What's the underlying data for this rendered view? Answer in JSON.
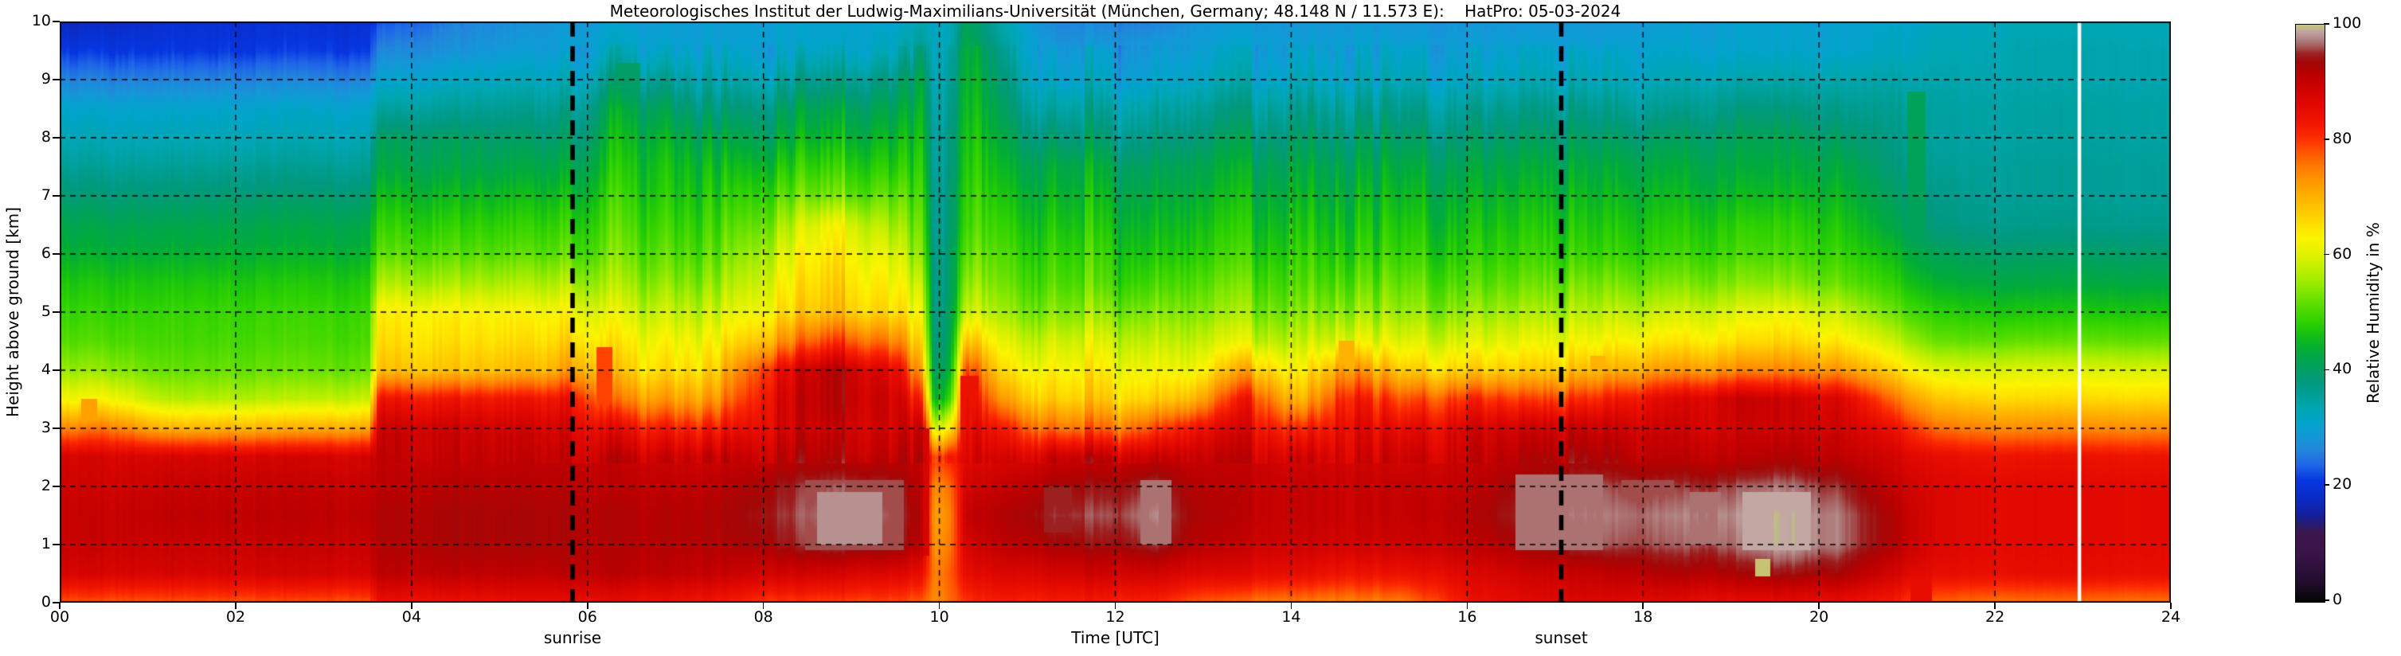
{
  "title": "Meteorologisches Institut der Ludwig-Maximilians-Universität (München, Germany; 48.148 N / 11.573 E):    HatPro: 05-03-2024",
  "axes": {
    "xlabel": "Time [UTC]",
    "ylabel": "Height above ground [km]",
    "x_tick_labels": [
      "00",
      "02",
      "04",
      "06",
      "08",
      "10",
      "12",
      "14",
      "16",
      "18",
      "20",
      "22",
      "24"
    ],
    "x_tick_values": [
      0,
      2,
      4,
      6,
      8,
      10,
      12,
      14,
      16,
      18,
      20,
      22,
      24
    ],
    "y_tick_labels": [
      "0",
      "1",
      "2",
      "3",
      "4",
      "5",
      "6",
      "7",
      "8",
      "9",
      "10"
    ],
    "y_tick_values": [
      0,
      1,
      2,
      3,
      4,
      5,
      6,
      7,
      8,
      9,
      10
    ]
  },
  "annotations": {
    "sunrise_label": "sunrise",
    "sunset_label": "sunset",
    "sunrise_time_utc": 5.83,
    "sunset_time_utc": 17.07,
    "data_gap_time_utc": 22.96
  },
  "colorbar": {
    "label": "Relative Humidity in %",
    "tick_values": [
      0,
      20,
      40,
      60,
      80,
      100
    ],
    "tick_labels": [
      "0",
      "20",
      "40",
      "60",
      "80",
      "100"
    ]
  },
  "chart_data": {
    "type": "heatmap",
    "title": "Relative humidity time-height section, HatPro microwave radiometer, 05-03-2024",
    "xlabel": "Time [UTC]",
    "ylabel": "Height above ground [km]",
    "value_label": "Relative Humidity in %",
    "x_range_hours": [
      0,
      24
    ],
    "y_range_km": [
      0,
      10
    ],
    "grid_x_step_hours": 2,
    "grid_y_step_km": 1,
    "heights_km": [
      0,
      0.5,
      1,
      1.5,
      2,
      2.5,
      3,
      3.5,
      4,
      4.5,
      5,
      5.5,
      6,
      6.5,
      7,
      7.5,
      8,
      8.5,
      9,
      9.5,
      10
    ],
    "times": [
      0,
      0.5,
      1.2,
      2.4,
      3.5,
      3.62,
      4.6,
      5.5,
      5.85,
      6.3,
      6.8,
      7.4,
      8.1,
      8.8,
      9.5,
      9.78,
      9.95,
      10.12,
      10.3,
      10.7,
      11.3,
      12.0,
      12.45,
      12.9,
      13.5,
      14.1,
      14.65,
      15.3,
      16.05,
      16.8,
      17.4,
      18.1,
      19.1,
      19.6,
      20.3,
      20.85,
      21.35,
      22.2,
      23.0,
      24.0
    ],
    "rh_profiles": [
      [
        78,
        88,
        90,
        90,
        89,
        88,
        74,
        62,
        55,
        51,
        49,
        47,
        44,
        42,
        39,
        36,
        33,
        31,
        26,
        21,
        17
      ],
      [
        78,
        88,
        90,
        90,
        89,
        88,
        76,
        63,
        55,
        51,
        49,
        47,
        44,
        42,
        39,
        36,
        33,
        31,
        26,
        21,
        18
      ],
      [
        78,
        88,
        90,
        91,
        90,
        88,
        70,
        57,
        52,
        50,
        49,
        47,
        44,
        42,
        39,
        36,
        33,
        31,
        26,
        21,
        19
      ],
      [
        78,
        88,
        90,
        91,
        90,
        88,
        70,
        57,
        52,
        50,
        49,
        47,
        44,
        42,
        39,
        36,
        33,
        31,
        26,
        21,
        19
      ],
      [
        78,
        88,
        90,
        91,
        90,
        88,
        71,
        58,
        52,
        50,
        49,
        47,
        44,
        42,
        39,
        36,
        33,
        31,
        26,
        21,
        19
      ],
      [
        84,
        91,
        92,
        92,
        91,
        90,
        89,
        83,
        68,
        65,
        63,
        56,
        51,
        48,
        45,
        42,
        40,
        35,
        30,
        26,
        22
      ],
      [
        84,
        91,
        93,
        93,
        92,
        90,
        89,
        83,
        68,
        65,
        63,
        56,
        51,
        48,
        45,
        42,
        40,
        36,
        32,
        28,
        26
      ],
      [
        85,
        91,
        93,
        93,
        92,
        91,
        89,
        84,
        70,
        66,
        63,
        57,
        52,
        49,
        46,
        43,
        40,
        37,
        33,
        30,
        28
      ],
      [
        85,
        92,
        93,
        93,
        92,
        91,
        89,
        85,
        74,
        68,
        64,
        58,
        53,
        50,
        47,
        44,
        41,
        38,
        34,
        31,
        29
      ],
      [
        85,
        91,
        92,
        92,
        91,
        90,
        84,
        74,
        67,
        63,
        59,
        55,
        52,
        50,
        48,
        46,
        44,
        42,
        37,
        32,
        30
      ],
      [
        84,
        91,
        92,
        92,
        91,
        89,
        82,
        72,
        65,
        62,
        58,
        54,
        51,
        49,
        47,
        46,
        44,
        41,
        36,
        31,
        29
      ],
      [
        83,
        90,
        92,
        92,
        91,
        89,
        81,
        71,
        65,
        61,
        57,
        53,
        50,
        48,
        46,
        44,
        41,
        37,
        33,
        30,
        29
      ],
      [
        80,
        89,
        94,
        95,
        94,
        91,
        88,
        87,
        84,
        72,
        65,
        62,
        59,
        55,
        51,
        47,
        43,
        40,
        35,
        31,
        30
      ],
      [
        79,
        88,
        96,
        97,
        96,
        91,
        89,
        91,
        91,
        79,
        68,
        66,
        64,
        61,
        52,
        48,
        44,
        41,
        36,
        31,
        30
      ],
      [
        79,
        87,
        95,
        96,
        95,
        91,
        89,
        89,
        86,
        75,
        66,
        63,
        60,
        56,
        52,
        48,
        45,
        42,
        38,
        33,
        31
      ],
      [
        77,
        85,
        91,
        92,
        91,
        90,
        88,
        80,
        70,
        64,
        60,
        56,
        52,
        50,
        48,
        46,
        44,
        42,
        40,
        36,
        33
      ],
      [
        74,
        75,
        73,
        72,
        74,
        80,
        60,
        45,
        41,
        39,
        38,
        38,
        38,
        37,
        37,
        36,
        36,
        35,
        34,
        33,
        32
      ],
      [
        76,
        77,
        75,
        74,
        76,
        81,
        62,
        47,
        42,
        40,
        39,
        38,
        38,
        37,
        37,
        36,
        36,
        35,
        34,
        33,
        32
      ],
      [
        80,
        85,
        88,
        90,
        88,
        86,
        85,
        84,
        79,
        68,
        58,
        54,
        51,
        49,
        48,
        47,
        46,
        45,
        44,
        43,
        41
      ],
      [
        82,
        87,
        91,
        92,
        90,
        87,
        82,
        72,
        65,
        60,
        55,
        52,
        50,
        48,
        46,
        44,
        42,
        40,
        38,
        36,
        34
      ],
      [
        82,
        88,
        93,
        95,
        93,
        89,
        75,
        66,
        62,
        58,
        53,
        50,
        48,
        46,
        44,
        42,
        38,
        34,
        30,
        28,
        26
      ],
      [
        82,
        89,
        94,
        96,
        94,
        90,
        76,
        67,
        63,
        59,
        54,
        50,
        48,
        46,
        44,
        42,
        38,
        35,
        31,
        29,
        26
      ],
      [
        82,
        89,
        96,
        98,
        96,
        91,
        80,
        68,
        63,
        59,
        55,
        51,
        48,
        46,
        44,
        42,
        39,
        36,
        32,
        30,
        26
      ],
      [
        78,
        87,
        92,
        93,
        92,
        90,
        84,
        70,
        62,
        58,
        54,
        51,
        48,
        46,
        44,
        42,
        39,
        36,
        32,
        30,
        28
      ],
      [
        76,
        86,
        90,
        91,
        91,
        90,
        87,
        83,
        71,
        60,
        55,
        52,
        49,
        47,
        45,
        43,
        40,
        37,
        33,
        31,
        29
      ],
      [
        75,
        85,
        89,
        90,
        90,
        88,
        80,
        68,
        62,
        57,
        53,
        50,
        48,
        46,
        44,
        42,
        39,
        36,
        32,
        30,
        28
      ],
      [
        75,
        84,
        89,
        90,
        90,
        89,
        87,
        84,
        75,
        62,
        56,
        52,
        49,
        47,
        45,
        43,
        40,
        37,
        33,
        31,
        29
      ],
      [
        75,
        84,
        89,
        90,
        90,
        88,
        84,
        77,
        66,
        59,
        54,
        51,
        48,
        46,
        44,
        42,
        39,
        36,
        32,
        30,
        28
      ],
      [
        84,
        87,
        91,
        92,
        91,
        90,
        88,
        81,
        67,
        60,
        55,
        51,
        48,
        46,
        44,
        42,
        39,
        36,
        32,
        30,
        28
      ],
      [
        86,
        89,
        94,
        96,
        95,
        91,
        88,
        78,
        66,
        60,
        55,
        51,
        48,
        46,
        44,
        42,
        39,
        36,
        32,
        30,
        28
      ],
      [
        87,
        90,
        96,
        97,
        96,
        92,
        89,
        80,
        68,
        61,
        56,
        52,
        48,
        46,
        44,
        42,
        39,
        36,
        32,
        30,
        28
      ],
      [
        86,
        92,
        96,
        97,
        95,
        91,
        89,
        85,
        72,
        64,
        58,
        53,
        49,
        47,
        45,
        43,
        40,
        36,
        33,
        31,
        29
      ],
      [
        85,
        93,
        97,
        98,
        96,
        91,
        89,
        90,
        74,
        65,
        60,
        54,
        50,
        48,
        45,
        43,
        41,
        38,
        34,
        31,
        30
      ],
      [
        85,
        94,
        99,
        99,
        97,
        92,
        89,
        89,
        74,
        66,
        61,
        54,
        50,
        48,
        45,
        43,
        41,
        38,
        34,
        31,
        30
      ],
      [
        85,
        93,
        97,
        97,
        95,
        91,
        89,
        87,
        73,
        64,
        58,
        52,
        49,
        47,
        45,
        43,
        40,
        37,
        34,
        31,
        30
      ],
      [
        82,
        88,
        92,
        92,
        90,
        88,
        84,
        76,
        66,
        58,
        52,
        48,
        45,
        42,
        40,
        38,
        37,
        36,
        34,
        32,
        31
      ],
      [
        77,
        85,
        87,
        87,
        87,
        85,
        76,
        68,
        60,
        52,
        48,
        44,
        41,
        38,
        37,
        36,
        35,
        35,
        34,
        33,
        32
      ],
      [
        76,
        85,
        86,
        86,
        86,
        84,
        74,
        66,
        60,
        52,
        47,
        43,
        40,
        37,
        36,
        36,
        35,
        35,
        34,
        34,
        33
      ],
      [
        76,
        85,
        86,
        86,
        86,
        84,
        74,
        66,
        60,
        52,
        47,
        43,
        40,
        37,
        36,
        36,
        35,
        35,
        34,
        34,
        33
      ],
      [
        76,
        85,
        86,
        86,
        86,
        84,
        74,
        66,
        60,
        52,
        47,
        43,
        40,
        37,
        36,
        36,
        35,
        35,
        34,
        34,
        33
      ]
    ],
    "features": [
      {
        "t0": 0.22,
        "t1": 0.42,
        "h0": 2.8,
        "h1": 3.5,
        "rh": 72
      },
      {
        "t0": 6.1,
        "t1": 6.28,
        "h0": 2.8,
        "h1": 4.4,
        "rh": 79
      },
      {
        "t0": 6.3,
        "t1": 6.6,
        "h0": 7.8,
        "h1": 9.3,
        "rh": 40
      },
      {
        "t0": 8.45,
        "t1": 9.6,
        "h0": 0.9,
        "h1": 2.1,
        "rh": 96
      },
      {
        "t0": 8.6,
        "t1": 9.35,
        "h0": 1.0,
        "h1": 1.9,
        "rh": 98
      },
      {
        "t0": 9.7,
        "t1": 9.87,
        "h0": 0.8,
        "h1": 3.0,
        "rh": 88
      },
      {
        "t0": 10.25,
        "t1": 10.45,
        "h0": 2.6,
        "h1": 3.9,
        "rh": 84
      },
      {
        "t0": 11.2,
        "t1": 11.5,
        "h0": 1.2,
        "h1": 2.0,
        "rh": 95
      },
      {
        "t0": 12.3,
        "t1": 12.62,
        "h0": 1.0,
        "h1": 2.1,
        "rh": 97
      },
      {
        "t0": 14.55,
        "t1": 14.72,
        "h0": 3.8,
        "h1": 4.5,
        "rh": 70
      },
      {
        "t0": 16.55,
        "t1": 17.55,
        "h0": 0.9,
        "h1": 2.2,
        "rh": 97
      },
      {
        "t0": 17.42,
        "t1": 17.58,
        "h0": 3.4,
        "h1": 4.25,
        "rh": 70
      },
      {
        "t0": 17.75,
        "t1": 18.35,
        "h0": 1.0,
        "h1": 2.1,
        "rh": 96
      },
      {
        "t0": 18.55,
        "t1": 18.9,
        "h0": 1.0,
        "h1": 1.9,
        "rh": 97
      },
      {
        "t0": 19.15,
        "t1": 19.9,
        "h0": 0.9,
        "h1": 1.9,
        "rh": 99
      },
      {
        "t0": 19.28,
        "t1": 19.45,
        "h0": 0.45,
        "h1": 0.75,
        "rh": 100
      },
      {
        "t0": 21.02,
        "t1": 21.22,
        "h0": 4.0,
        "h1": 8.8,
        "rh": 41
      },
      {
        "t0": 21.02,
        "t1": 21.28,
        "h0": 2.2,
        "h1": 4.0,
        "rh": 60
      },
      {
        "t0": 21.05,
        "t1": 21.3,
        "h0": 0.0,
        "h1": 2.2,
        "rh": 85
      }
    ],
    "colormap_stops": [
      [
        0,
        "#050505"
      ],
      [
        3,
        "#1f0c2a"
      ],
      [
        8,
        "#3a1348"
      ],
      [
        12,
        "#3d164e"
      ],
      [
        13.5,
        "#271c74"
      ],
      [
        15,
        "#141f9e"
      ],
      [
        18,
        "#0a2cc8"
      ],
      [
        21,
        "#0636e0"
      ],
      [
        23.5,
        "#1e64e8"
      ],
      [
        26,
        "#2384dc"
      ],
      [
        28.5,
        "#1498d8"
      ],
      [
        31,
        "#02a4cc"
      ],
      [
        33.5,
        "#00a6b2"
      ],
      [
        36,
        "#009e96"
      ],
      [
        38.5,
        "#00997a"
      ],
      [
        41,
        "#00a25a"
      ],
      [
        43.5,
        "#00ac3a"
      ],
      [
        46,
        "#12be16"
      ],
      [
        48.5,
        "#2ed200"
      ],
      [
        51,
        "#52dc00"
      ],
      [
        54,
        "#84e800"
      ],
      [
        57,
        "#b6ee00"
      ],
      [
        60,
        "#def200"
      ],
      [
        63,
        "#fcf400"
      ],
      [
        65.5,
        "#ffde00"
      ],
      [
        68,
        "#ffc600"
      ],
      [
        70.5,
        "#ffae00"
      ],
      [
        73,
        "#ff9600"
      ],
      [
        75.5,
        "#ff7a00"
      ],
      [
        78,
        "#ff5400"
      ],
      [
        80.5,
        "#fc2c00"
      ],
      [
        83,
        "#f11600"
      ],
      [
        86,
        "#e20900"
      ],
      [
        89,
        "#ce0300"
      ],
      [
        91.5,
        "#ba0000"
      ],
      [
        93.5,
        "#a40707"
      ],
      [
        95,
        "#9c2020"
      ],
      [
        96.5,
        "#a66262"
      ],
      [
        98,
        "#b79090"
      ],
      [
        99,
        "#c2a7a3"
      ],
      [
        99.4,
        "#c0b98c"
      ],
      [
        100,
        "#c6c472"
      ]
    ],
    "noise": {
      "base": 1.0,
      "mid_day": 3.4,
      "early": 2.0,
      "evening": 1.6,
      "late": 0.5,
      "red_zone_factor": 0.8
    }
  }
}
